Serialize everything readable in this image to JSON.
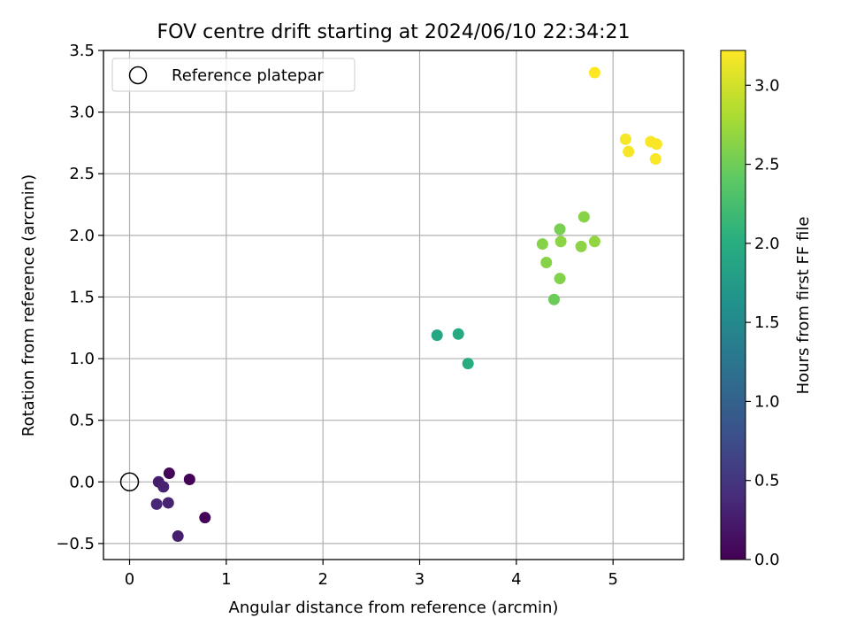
{
  "chart_data": {
    "type": "scatter",
    "title": "FOV centre drift starting at 2024/06/10 22:34:21",
    "xlabel": "Angular distance from reference (arcmin)",
    "ylabel": "Rotation from reference (arcmin)",
    "xlim": [
      -0.27,
      5.73
    ],
    "ylim": [
      -0.63,
      3.5
    ],
    "xticks": [
      "0",
      "1",
      "2",
      "3",
      "4",
      "5"
    ],
    "yticks": [
      "−0.5",
      "0.0",
      "0.5",
      "1.0",
      "1.5",
      "2.0",
      "2.5",
      "3.0",
      "3.5"
    ],
    "grid": true,
    "legend": {
      "position": "top-left",
      "entries": [
        "Reference platepar"
      ]
    },
    "reference_point": {
      "x": 0,
      "y": 0
    },
    "colorbar": {
      "label": "Hours from first FF file",
      "range": [
        0,
        3.22
      ],
      "ticks": [
        "0.0",
        "0.5",
        "1.0",
        "1.5",
        "2.0",
        "2.5",
        "3.0"
      ],
      "colormap": "viridis"
    },
    "points": [
      {
        "x": 0.41,
        "y": 0.07,
        "c": 0.05
      },
      {
        "x": 0.62,
        "y": 0.02,
        "c": 0.02
      },
      {
        "x": 0.3,
        "y": 0.0,
        "c": 0.25
      },
      {
        "x": 0.35,
        "y": -0.04,
        "c": 0.3
      },
      {
        "x": 0.28,
        "y": -0.18,
        "c": 0.35
      },
      {
        "x": 0.4,
        "y": -0.17,
        "c": 0.3
      },
      {
        "x": 0.5,
        "y": -0.44,
        "c": 0.28
      },
      {
        "x": 0.78,
        "y": -0.29,
        "c": 0.02
      },
      {
        "x": 3.18,
        "y": 1.19,
        "c": 1.92
      },
      {
        "x": 3.4,
        "y": 1.2,
        "c": 1.95
      },
      {
        "x": 3.5,
        "y": 0.96,
        "c": 1.98
      },
      {
        "x": 4.27,
        "y": 1.93,
        "c": 2.62
      },
      {
        "x": 4.31,
        "y": 1.78,
        "c": 2.62
      },
      {
        "x": 4.39,
        "y": 1.48,
        "c": 2.48
      },
      {
        "x": 4.45,
        "y": 2.05,
        "c": 2.55
      },
      {
        "x": 4.46,
        "y": 1.95,
        "c": 2.65
      },
      {
        "x": 4.45,
        "y": 1.65,
        "c": 2.6
      },
      {
        "x": 4.67,
        "y": 1.91,
        "c": 2.65
      },
      {
        "x": 4.7,
        "y": 2.15,
        "c": 2.62
      },
      {
        "x": 4.81,
        "y": 1.95,
        "c": 2.68
      },
      {
        "x": 4.81,
        "y": 3.32,
        "c": 3.22
      },
      {
        "x": 5.13,
        "y": 2.78,
        "c": 3.18
      },
      {
        "x": 5.16,
        "y": 2.68,
        "c": 3.18
      },
      {
        "x": 5.39,
        "y": 2.76,
        "c": 3.2
      },
      {
        "x": 5.45,
        "y": 2.74,
        "c": 3.2
      },
      {
        "x": 5.44,
        "y": 2.62,
        "c": 3.2
      }
    ]
  }
}
